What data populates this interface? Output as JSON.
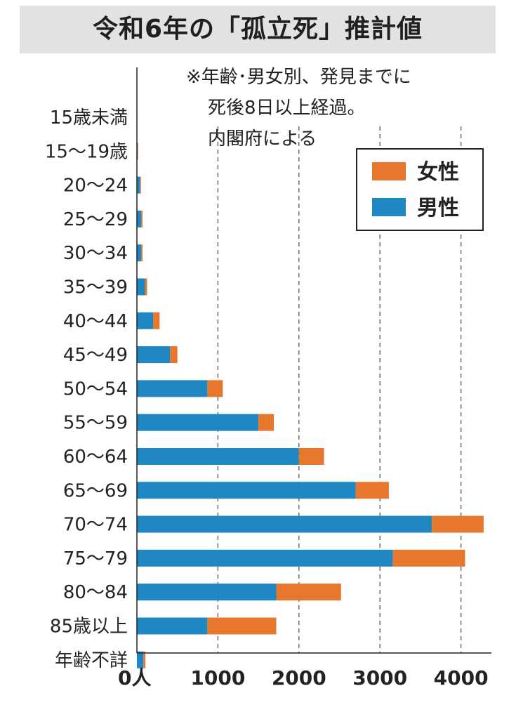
{
  "title": "令和6年の「孤立死」推計値",
  "note": [
    "※年齢･男女別、発見までに",
    "死後8日以上経過。",
    "内閣府による"
  ],
  "colors": {
    "female": "#e8772e",
    "male": "#1e87c4"
  },
  "x_axis": {
    "zero_label": "0人"
  },
  "chart_data": {
    "type": "bar",
    "orientation": "horizontal",
    "stacked": true,
    "categories": [
      "15歳未満",
      "15～19歳",
      "20～24",
      "25～29",
      "30～34",
      "35～39",
      "40～44",
      "45～49",
      "50～54",
      "55～59",
      "60～64",
      "65～69",
      "70～74",
      "75～79",
      "80～84",
      "85歳以上",
      "年齢不詳"
    ],
    "series": [
      {
        "name": "男性",
        "color": "#1e87c4",
        "values": [
          5,
          10,
          40,
          55,
          55,
          100,
          200,
          410,
          870,
          1500,
          2000,
          2700,
          3640,
          3160,
          1720,
          870,
          80
        ]
      },
      {
        "name": "女性",
        "color": "#e8772e",
        "values": [
          0,
          5,
          10,
          15,
          15,
          25,
          80,
          90,
          190,
          190,
          310,
          410,
          640,
          890,
          800,
          850,
          25
        ]
      }
    ],
    "xlim": [
      0,
      4300
    ],
    "x_ticks": [
      0,
      1000,
      2000,
      3000,
      4000
    ],
    "gridlines": "dashed vertical at 1000, 2000, 3000, 4000",
    "legend": {
      "position": "top-right",
      "entries": [
        "女性",
        "男性"
      ]
    }
  }
}
